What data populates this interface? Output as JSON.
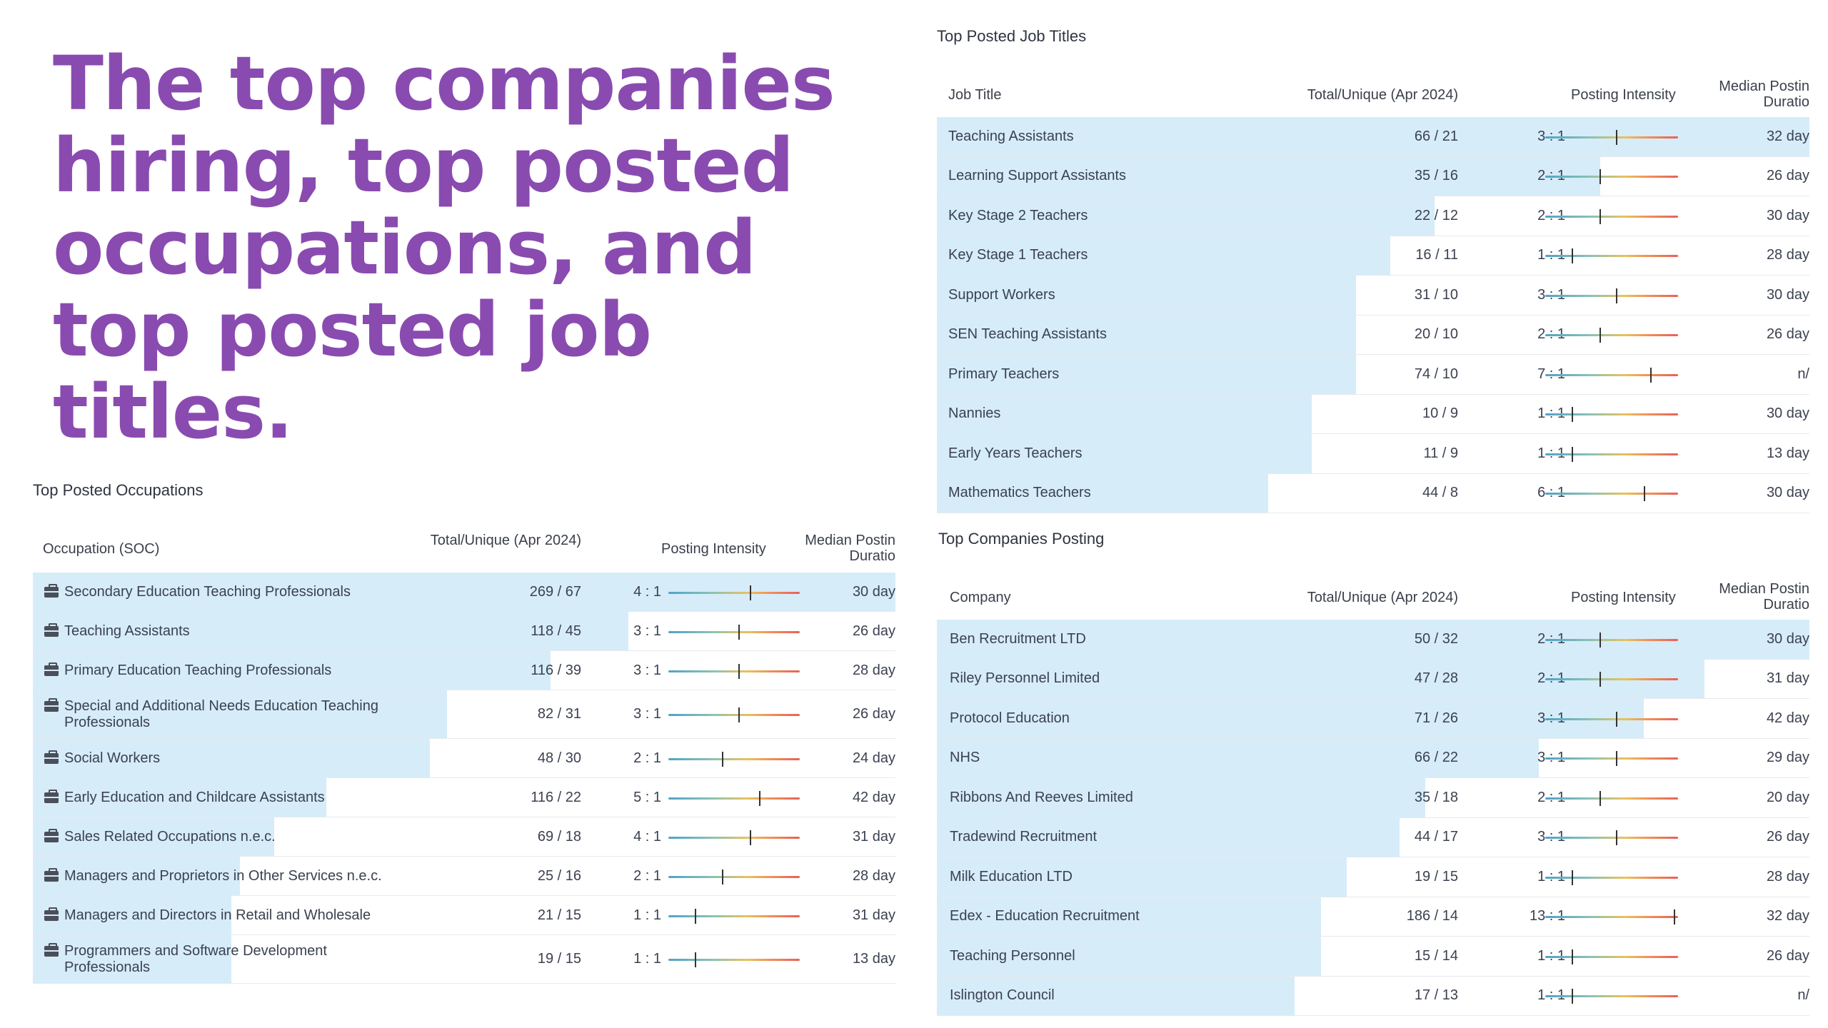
{
  "headline": "The top companies hiring, top posted occupations, and top posted job titles.",
  "occupations": {
    "title": "Top Posted Occupations",
    "columns": {
      "name": "Occupation (SOC)",
      "total": "Total/Unique (Apr 2024)",
      "intensity": "Posting Intensity",
      "duration": "Median Postin Duratio"
    },
    "rows": [
      {
        "name": "Secondary Education Teaching Professionals",
        "total": "269 / 67",
        "ratio": "4 : 1",
        "intensity": 4,
        "duration": "30 day",
        "share": 1.0
      },
      {
        "name": "Teaching Assistants",
        "total": "118 / 45",
        "ratio": "3 : 1",
        "intensity": 3,
        "duration": "26 day",
        "share": 0.69
      },
      {
        "name": "Primary Education Teaching Professionals",
        "total": "116 / 39",
        "ratio": "3 : 1",
        "intensity": 3,
        "duration": "28 day",
        "share": 0.6
      },
      {
        "name": "Special and Additional Needs Education Teaching Professionals",
        "total": "82 / 31",
        "ratio": "3 : 1",
        "intensity": 3,
        "duration": "26 day",
        "share": 0.48
      },
      {
        "name": "Social Workers",
        "total": "48 / 30",
        "ratio": "2 : 1",
        "intensity": 2,
        "duration": "24 day",
        "share": 0.46
      },
      {
        "name": "Early Education and Childcare Assistants",
        "total": "116 / 22",
        "ratio": "5 : 1",
        "intensity": 5,
        "duration": "42 day",
        "share": 0.34
      },
      {
        "name": "Sales Related Occupations n.e.c.",
        "total": "69 / 18",
        "ratio": "4 : 1",
        "intensity": 4,
        "duration": "31 day",
        "share": 0.28
      },
      {
        "name": "Managers and Proprietors in Other Services n.e.c.",
        "total": "25 / 16",
        "ratio": "2 : 1",
        "intensity": 2,
        "duration": "28 day",
        "share": 0.24
      },
      {
        "name": "Managers and Directors in Retail and Wholesale",
        "total": "21 / 15",
        "ratio": "1 : 1",
        "intensity": 1,
        "duration": "31 day",
        "share": 0.23
      },
      {
        "name": "Programmers and Software Development Professionals",
        "total": "19 / 15",
        "ratio": "1 : 1",
        "intensity": 1,
        "duration": "13 day",
        "share": 0.23
      }
    ]
  },
  "job_titles": {
    "title": "Top Posted Job Titles",
    "columns": {
      "name": "Job Title",
      "total": "Total/Unique (Apr 2024)",
      "intensity": "Posting Intensity",
      "duration": "Median Postin Duratio"
    },
    "rows": [
      {
        "name": "Teaching Assistants",
        "total": "66 / 21",
        "ratio": "3 : 1",
        "intensity": 3,
        "duration": "32 day",
        "share": 1.0
      },
      {
        "name": "Learning Support Assistants",
        "total": "35 / 16",
        "ratio": "2 : 1",
        "intensity": 2,
        "duration": "26 day",
        "share": 0.76
      },
      {
        "name": "Key Stage 2 Teachers",
        "total": "22 / 12",
        "ratio": "2 : 1",
        "intensity": 2,
        "duration": "30 day",
        "share": 0.57
      },
      {
        "name": "Key Stage 1 Teachers",
        "total": "16 / 11",
        "ratio": "1 : 1",
        "intensity": 1,
        "duration": "28 day",
        "share": 0.52
      },
      {
        "name": "Support Workers",
        "total": "31 / 10",
        "ratio": "3 : 1",
        "intensity": 3,
        "duration": "30 day",
        "share": 0.48
      },
      {
        "name": "SEN Teaching Assistants",
        "total": "20 / 10",
        "ratio": "2 : 1",
        "intensity": 2,
        "duration": "26 day",
        "share": 0.48
      },
      {
        "name": "Primary Teachers",
        "total": "74 / 10",
        "ratio": "7 : 1",
        "intensity": 7,
        "duration": "n/",
        "share": 0.48
      },
      {
        "name": "Nannies",
        "total": "10 / 9",
        "ratio": "1 : 1",
        "intensity": 1,
        "duration": "30 day",
        "share": 0.43
      },
      {
        "name": "Early Years Teachers",
        "total": "11 / 9",
        "ratio": "1 : 1",
        "intensity": 1,
        "duration": "13 day",
        "share": 0.43
      },
      {
        "name": "Mathematics Teachers",
        "total": "44 / 8",
        "ratio": "6 : 1",
        "intensity": 6,
        "duration": "30 day",
        "share": 0.38
      }
    ]
  },
  "companies": {
    "title": "Top Companies Posting",
    "columns": {
      "name": "Company",
      "total": "Total/Unique (Apr 2024)",
      "intensity": "Posting Intensity",
      "duration": "Median Postin Duratio"
    },
    "rows": [
      {
        "name": "Ben Recruitment LTD",
        "total": "50 / 32",
        "ratio": "2 : 1",
        "intensity": 2,
        "duration": "30 day",
        "share": 1.0
      },
      {
        "name": "Riley Personnel Limited",
        "total": "47 / 28",
        "ratio": "2 : 1",
        "intensity": 2,
        "duration": "31 day",
        "share": 0.88
      },
      {
        "name": "Protocol Education",
        "total": "71 / 26",
        "ratio": "3 : 1",
        "intensity": 3,
        "duration": "42 day",
        "share": 0.81
      },
      {
        "name": "NHS",
        "total": "66 / 22",
        "ratio": "3 : 1",
        "intensity": 3,
        "duration": "29 day",
        "share": 0.69
      },
      {
        "name": "Ribbons And Reeves Limited",
        "total": "35 / 18",
        "ratio": "2 : 1",
        "intensity": 2,
        "duration": "20 day",
        "share": 0.56
      },
      {
        "name": "Tradewind Recruitment",
        "total": "44 / 17",
        "ratio": "3 : 1",
        "intensity": 3,
        "duration": "26 day",
        "share": 0.53
      },
      {
        "name": "Milk Education LTD",
        "total": "19 / 15",
        "ratio": "1 : 1",
        "intensity": 1,
        "duration": "28 day",
        "share": 0.47
      },
      {
        "name": "Edex - Education Recruitment",
        "total": "186 / 14",
        "ratio": "13 : 1",
        "intensity": 13,
        "duration": "32 day",
        "share": 0.44
      },
      {
        "name": "Teaching Personnel",
        "total": "15 / 14",
        "ratio": "1 : 1",
        "intensity": 1,
        "duration": "26 day",
        "share": 0.44
      },
      {
        "name": "Islington Council",
        "total": "17 / 13",
        "ratio": "1 : 1",
        "intensity": 1,
        "duration": "n/",
        "share": 0.41
      }
    ]
  },
  "colors": {
    "headline": "#8a4bb0",
    "bar": "#d6ecf9",
    "text": "#3b4150"
  }
}
